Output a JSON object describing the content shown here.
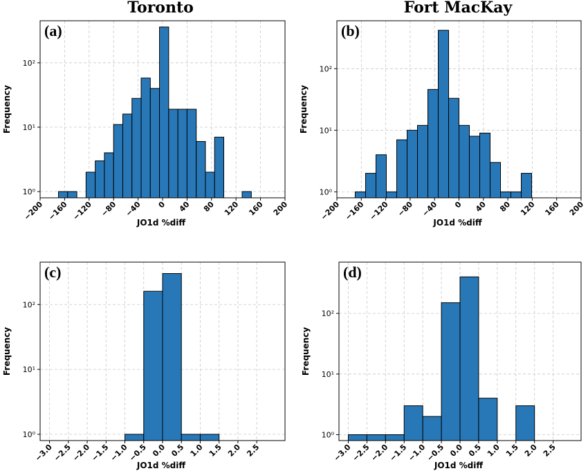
{
  "titles": {
    "left": "Toronto",
    "right": "Fort MacKay"
  },
  "colors": {
    "bar": "#2878b8",
    "edge": "#000000",
    "grid": "#c8c8c8"
  },
  "chart_data": [
    {
      "id": "a",
      "type": "bar",
      "panel_label": "(a)",
      "title": "Toronto",
      "xlabel": "JO1d %diff",
      "ylabel": "Frequency",
      "yscale": "log",
      "ylim": [
        0.8,
        450
      ],
      "yticks": [
        1,
        10,
        100
      ],
      "ytick_labels": [
        "10⁰",
        "10¹",
        "10²"
      ],
      "xlim": [
        -200,
        200
      ],
      "xticks": [
        -200,
        -160,
        -120,
        -80,
        -40,
        0,
        40,
        80,
        120,
        160,
        200
      ],
      "xtick_labels": [
        "−200",
        "−160",
        "−120",
        "−80",
        "−40",
        "0",
        "40",
        "80",
        "120",
        "160",
        "200"
      ],
      "bins": [
        {
          "x0": -170,
          "x1": -155,
          "count": 1
        },
        {
          "x0": -155,
          "x1": -140,
          "count": 1
        },
        {
          "x0": -125,
          "x1": -110,
          "count": 2
        },
        {
          "x0": -110,
          "x1": -95,
          "count": 3
        },
        {
          "x0": -95,
          "x1": -80,
          "count": 4
        },
        {
          "x0": -80,
          "x1": -65,
          "count": 11
        },
        {
          "x0": -65,
          "x1": -50,
          "count": 16
        },
        {
          "x0": -50,
          "x1": -35,
          "count": 28
        },
        {
          "x0": -35,
          "x1": -20,
          "count": 58
        },
        {
          "x0": -20,
          "x1": -5,
          "count": 40
        },
        {
          "x0": -5,
          "x1": 10,
          "count": 360
        },
        {
          "x0": 10,
          "x1": 25,
          "count": 19
        },
        {
          "x0": 25,
          "x1": 40,
          "count": 19
        },
        {
          "x0": 40,
          "x1": 55,
          "count": 19
        },
        {
          "x0": 55,
          "x1": 70,
          "count": 6
        },
        {
          "x0": 70,
          "x1": 85,
          "count": 2
        },
        {
          "x0": 85,
          "x1": 100,
          "count": 7
        },
        {
          "x0": 130,
          "x1": 145,
          "count": 1
        }
      ]
    },
    {
      "id": "b",
      "type": "bar",
      "panel_label": "(b)",
      "title": "Fort MacKay",
      "xlabel": "JO1d %diff",
      "ylabel": "Frequency",
      "yscale": "log",
      "ylim": [
        0.8,
        600
      ],
      "yticks": [
        1,
        10,
        100
      ],
      "ytick_labels": [
        "10⁰",
        "10¹",
        "10²"
      ],
      "xlim": [
        -200,
        200
      ],
      "xticks": [
        -200,
        -160,
        -120,
        -80,
        -40,
        0,
        40,
        80,
        120,
        160,
        200
      ],
      "xtick_labels": [
        "−200",
        "−160",
        "−120",
        "−80",
        "−40",
        "0",
        "40",
        "80",
        "120",
        "160",
        "200"
      ],
      "bins": [
        {
          "x0": -170,
          "x1": -153,
          "count": 1
        },
        {
          "x0": -153,
          "x1": -136,
          "count": 2
        },
        {
          "x0": -136,
          "x1": -119,
          "count": 4
        },
        {
          "x0": -119,
          "x1": -102,
          "count": 1
        },
        {
          "x0": -102,
          "x1": -85,
          "count": 7
        },
        {
          "x0": -85,
          "x1": -68,
          "count": 10
        },
        {
          "x0": -68,
          "x1": -51,
          "count": 12
        },
        {
          "x0": -51,
          "x1": -34,
          "count": 46
        },
        {
          "x0": -34,
          "x1": -17,
          "count": 420
        },
        {
          "x0": -17,
          "x1": 0,
          "count": 33
        },
        {
          "x0": 0,
          "x1": 17,
          "count": 12
        },
        {
          "x0": 17,
          "x1": 34,
          "count": 8
        },
        {
          "x0": 34,
          "x1": 51,
          "count": 9
        },
        {
          "x0": 51,
          "x1": 68,
          "count": 3
        },
        {
          "x0": 68,
          "x1": 85,
          "count": 1
        },
        {
          "x0": 85,
          "x1": 102,
          "count": 1
        },
        {
          "x0": 102,
          "x1": 119,
          "count": 2
        }
      ]
    },
    {
      "id": "c",
      "type": "bar",
      "panel_label": "(c)",
      "xlabel": "JO1d %diff",
      "ylabel": "Frequency",
      "yscale": "log",
      "ylim": [
        0.8,
        450
      ],
      "yticks": [
        1,
        10,
        100
      ],
      "ytick_labels": [
        "10⁰",
        "10¹",
        "10²"
      ],
      "xlim": [
        -3.25,
        3.25
      ],
      "xticks": [
        -3.0,
        -2.5,
        -2.0,
        -1.5,
        -1.0,
        -0.5,
        0.0,
        0.5,
        1.0,
        1.5,
        2.0,
        2.5
      ],
      "xtick_labels": [
        "−3.0",
        "−2.5",
        "−2.0",
        "−1.5",
        "−1.0",
        "−0.5",
        "0.0",
        "0.5",
        "1.0",
        "1.5",
        "2.0",
        "2.5"
      ],
      "bins": [
        {
          "x0": -1.0,
          "x1": -0.5,
          "count": 1
        },
        {
          "x0": -0.5,
          "x1": 0.0,
          "count": 160
        },
        {
          "x0": 0.0,
          "x1": 0.5,
          "count": 300
        },
        {
          "x0": 0.5,
          "x1": 1.0,
          "count": 1
        },
        {
          "x0": 1.0,
          "x1": 1.5,
          "count": 1
        }
      ]
    },
    {
      "id": "d",
      "type": "bar",
      "panel_label": "(d)",
      "xlabel": "JO1d %diff",
      "ylabel": "Frequency",
      "yscale": "log",
      "ylim": [
        0.8,
        700
      ],
      "yticks": [
        1,
        10,
        100
      ],
      "ytick_labels": [
        "10⁰",
        "10¹",
        "10²"
      ],
      "xlim": [
        -3.25,
        3.25
      ],
      "xticks": [
        -3.0,
        -2.5,
        -2.0,
        -1.5,
        -1.0,
        -0.5,
        0.0,
        0.5,
        1.0,
        1.5,
        2.0,
        2.5
      ],
      "xtick_labels": [
        "−3.0",
        "−2.5",
        "−2.0",
        "−1.5",
        "−1.0",
        "−0.5",
        "0.0",
        "0.5",
        "1.0",
        "1.5",
        "2.0",
        "2.5"
      ],
      "bins": [
        {
          "x0": -3.0,
          "x1": -2.5,
          "count": 1
        },
        {
          "x0": -2.5,
          "x1": -2.0,
          "count": 1
        },
        {
          "x0": -2.0,
          "x1": -1.5,
          "count": 1
        },
        {
          "x0": -1.5,
          "x1": -1.0,
          "count": 3
        },
        {
          "x0": -1.0,
          "x1": -0.5,
          "count": 2
        },
        {
          "x0": -0.5,
          "x1": 0.0,
          "count": 150
        },
        {
          "x0": 0.0,
          "x1": 0.5,
          "count": 400
        },
        {
          "x0": 0.5,
          "x1": 1.0,
          "count": 4
        },
        {
          "x0": 1.5,
          "x1": 2.0,
          "count": 3
        }
      ]
    }
  ]
}
